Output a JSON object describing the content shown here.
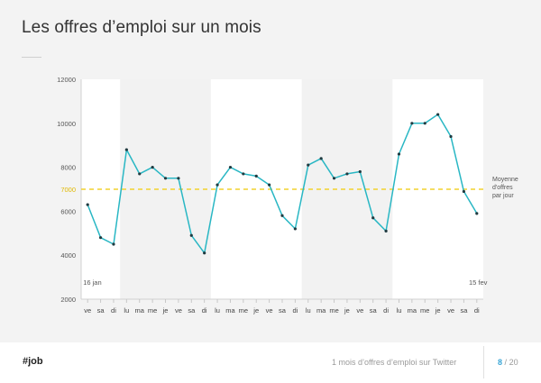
{
  "page": {
    "title": "Les offres d’emploi sur un mois",
    "footer_tag": "#job",
    "footer_caption": "1 mois d’offres d’emploi sur Twitter",
    "page_current": "8",
    "page_separator": "/",
    "page_total": "20"
  },
  "colors": {
    "line": "#29b7c4",
    "average": "#f2d22e",
    "week_band": "#f2f2f2",
    "average_label": "#e0b800"
  },
  "chart_data": {
    "type": "line",
    "title": "Les offres d’emploi sur un mois",
    "categories": [
      "ve",
      "sa",
      "di",
      "lu",
      "ma",
      "me",
      "je",
      "ve",
      "sa",
      "di",
      "lu",
      "ma",
      "me",
      "je",
      "ve",
      "sa",
      "di",
      "lu",
      "ma",
      "me",
      "je",
      "ve",
      "sa",
      "di",
      "lu",
      "ma",
      "me",
      "je",
      "ve",
      "sa",
      "di"
    ],
    "values": [
      6300,
      4800,
      4500,
      8800,
      7700,
      8000,
      7500,
      7500,
      4900,
      4100,
      7200,
      8000,
      7700,
      7600,
      7200,
      5800,
      5200,
      8100,
      8400,
      7500,
      7700,
      7800,
      5700,
      5100,
      8600,
      10000,
      10000,
      10400,
      9400,
      6900,
      5900
    ],
    "ylim": [
      2000,
      12000
    ],
    "yticks": [
      2000,
      4000,
      6000,
      8000,
      10000,
      12000
    ],
    "average": {
      "value": 7000,
      "label": "7000",
      "legend": [
        "Moyenne",
        "d'offres",
        "par jour"
      ]
    },
    "start_label": "16 jan",
    "end_label": "15 fev",
    "shaded_weeks": [
      [
        3,
        9
      ],
      [
        17,
        23
      ]
    ],
    "grid": false
  }
}
